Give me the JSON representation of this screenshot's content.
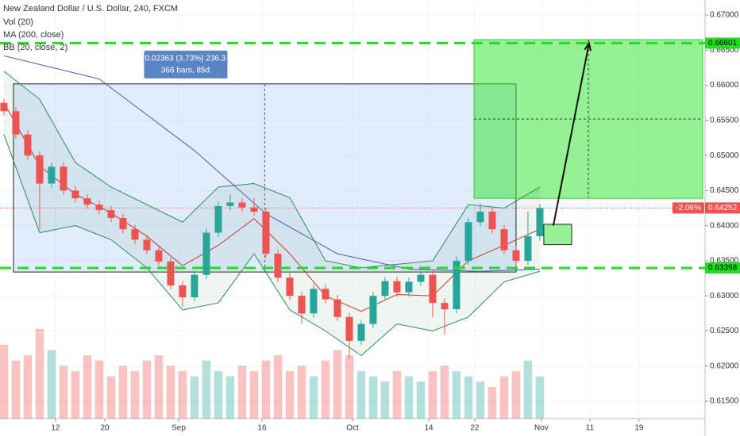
{
  "chart_data": {
    "type": "candlestick",
    "title": "New Zealand Dollar / U.S. Dollar, 240, FXCM",
    "indicators": [
      "Vol (20)",
      "MA (200, close)",
      "BB (20, close, 2)"
    ],
    "open": [
      0.6575,
      0.6563,
      0.653,
      0.65,
      0.646,
      0.6484,
      0.645,
      0.6439,
      0.643,
      0.6422,
      0.6411,
      0.6395,
      0.638,
      0.6365,
      0.6349,
      0.6315,
      0.6298,
      0.633,
      0.639,
      0.6428,
      0.6433,
      0.6426,
      0.642,
      0.636,
      0.6326,
      0.63,
      0.6275,
      0.631,
      0.6295,
      0.627,
      0.6236,
      0.626,
      0.63,
      0.6321,
      0.6305,
      0.632,
      0.633,
      0.629,
      0.6281,
      0.635,
      0.6405,
      0.642,
      0.6395,
      0.6365,
      0.635,
      0.6385
    ],
    "high": [
      0.6581,
      0.6569,
      0.6536,
      0.6506,
      0.649,
      0.649,
      0.6456,
      0.6445,
      0.6436,
      0.6428,
      0.6417,
      0.6401,
      0.6386,
      0.6371,
      0.6355,
      0.6321,
      0.6336,
      0.6396,
      0.6434,
      0.6445,
      0.6439,
      0.644,
      0.6426,
      0.6366,
      0.6332,
      0.6306,
      0.6316,
      0.6316,
      0.6301,
      0.6276,
      0.6266,
      0.6306,
      0.6327,
      0.6327,
      0.6326,
      0.6336,
      0.6336,
      0.6296,
      0.6356,
      0.6411,
      0.6432,
      0.6426,
      0.6401,
      0.6371,
      0.642,
      0.6431
    ],
    "low": [
      0.6557,
      0.6524,
      0.6494,
      0.6395,
      0.6454,
      0.6444,
      0.6433,
      0.6424,
      0.6416,
      0.6405,
      0.6389,
      0.6374,
      0.6359,
      0.6343,
      0.6309,
      0.6285,
      0.6292,
      0.6324,
      0.6384,
      0.6422,
      0.642,
      0.6414,
      0.6354,
      0.632,
      0.6294,
      0.626,
      0.6269,
      0.6289,
      0.6264,
      0.621,
      0.623,
      0.6254,
      0.6294,
      0.6299,
      0.6299,
      0.6314,
      0.627,
      0.6245,
      0.6275,
      0.6344,
      0.6399,
      0.6389,
      0.6359,
      0.6342,
      0.6344,
      0.6379
    ],
    "close": [
      0.6563,
      0.653,
      0.65,
      0.646,
      0.6484,
      0.645,
      0.6439,
      0.643,
      0.6422,
      0.6411,
      0.6395,
      0.638,
      0.6365,
      0.6349,
      0.6315,
      0.6298,
      0.633,
      0.639,
      0.6428,
      0.6433,
      0.6426,
      0.642,
      0.636,
      0.6326,
      0.63,
      0.6275,
      0.631,
      0.6295,
      0.627,
      0.6236,
      0.626,
      0.63,
      0.6321,
      0.6305,
      0.632,
      0.633,
      0.629,
      0.6281,
      0.635,
      0.6405,
      0.642,
      0.6395,
      0.6365,
      0.635,
      0.6385,
      0.6425
    ],
    "up_color": "#26a69a",
    "down_color": "#ef5350",
    "volume": {
      "values": [
        70,
        55,
        60,
        85,
        65,
        50,
        45,
        60,
        55,
        40,
        50,
        45,
        55,
        60,
        50,
        45,
        40,
        55,
        45,
        40,
        50,
        45,
        55,
        60,
        45,
        50,
        40,
        55,
        65,
        60,
        45,
        40,
        35,
        45,
        40,
        35,
        45,
        50,
        45,
        40,
        35,
        30,
        40,
        45,
        55,
        40
      ],
      "ylim": [
        0,
        100
      ]
    },
    "ma": {
      "x": [
        0,
        8,
        16,
        22,
        28,
        34,
        40,
        45
      ],
      "values": [
        0.6642,
        0.6609,
        0.6507,
        0.6417,
        0.636,
        0.6338,
        0.6335,
        0.6338
      ],
      "color": "#5b58b8"
    },
    "bb": {
      "x": [
        0,
        3,
        6,
        9,
        12,
        15,
        18,
        21,
        24,
        27,
        30,
        33,
        36,
        39,
        42,
        45
      ],
      "upper": [
        0.662,
        0.658,
        0.649,
        0.6455,
        0.643,
        0.6405,
        0.6455,
        0.646,
        0.644,
        0.635,
        0.634,
        0.6345,
        0.635,
        0.643,
        0.6425,
        0.6455
      ],
      "basis": [
        0.6575,
        0.6485,
        0.6445,
        0.6418,
        0.6385,
        0.6343,
        0.6372,
        0.641,
        0.636,
        0.63,
        0.6278,
        0.6302,
        0.63,
        0.635,
        0.6372,
        0.6395
      ],
      "lower": [
        0.653,
        0.639,
        0.64,
        0.638,
        0.634,
        0.628,
        0.629,
        0.636,
        0.628,
        0.625,
        0.6215,
        0.626,
        0.625,
        0.627,
        0.632,
        0.6335
      ],
      "color": "#2e8b57",
      "basis_color": "#c0392b"
    },
    "xlim": [
      -0.33,
      58.87
    ],
    "xticks": [
      {
        "value": 4.33,
        "label": "12"
      },
      {
        "value": 8.47,
        "label": "20"
      },
      {
        "value": 14.67,
        "label": "Sep"
      },
      {
        "value": 21.67,
        "label": "16"
      },
      {
        "value": 29.27,
        "label": "Oct"
      },
      {
        "value": 35.67,
        "label": "14"
      },
      {
        "value": 39.53,
        "label": "22"
      },
      {
        "value": 45.13,
        "label": "Nov"
      },
      {
        "value": 49.2,
        "label": "11"
      },
      {
        "value": 53.33,
        "label": "19"
      }
    ],
    "ylim": [
      0.61252,
      0.67215
    ],
    "yticks": [
      {
        "value": 0.615,
        "label": "0.61500"
      },
      {
        "value": 0.62,
        "label": "0.62000"
      },
      {
        "value": 0.625,
        "label": "0.62500"
      },
      {
        "value": 0.63,
        "label": "0.63000"
      },
      {
        "value": 0.635,
        "label": "0.63500"
      },
      {
        "value": 0.64,
        "label": "0.64000"
      },
      {
        "value": 0.645,
        "label": "0.64500"
      },
      {
        "value": 0.65,
        "label": "0.65000"
      },
      {
        "value": 0.655,
        "label": "0.65500"
      },
      {
        "value": 0.66,
        "label": "0.66000"
      },
      {
        "value": 0.665,
        "label": "0.66500"
      },
      {
        "value": 0.67,
        "label": "0.67000"
      }
    ],
    "levels": [
      {
        "value": 0.66601,
        "label": "0.66601"
      },
      {
        "value": 0.63398,
        "label": "0.63398"
      }
    ],
    "level_color": "#22dd22",
    "last": {
      "value": 0.64252,
      "label": "0.64252",
      "change": "-2.06%"
    },
    "measure": {
      "x": [
        0.8,
        43
      ],
      "y": [
        0.6334,
        0.6602
      ],
      "text": [
        "0.02363 (3.73%) 236.3",
        "366 bars, 85d"
      ]
    },
    "target": {
      "x": [
        39.47,
        58.67
      ],
      "y": [
        0.6439,
        0.6665
      ]
    },
    "arrow": {
      "x": [
        46.13,
        49.13
      ],
      "y": [
        0.64,
        0.666
      ]
    },
    "box": {
      "x": [
        45.33,
        47.67
      ],
      "y": [
        0.6373,
        0.6402
      ]
    }
  }
}
